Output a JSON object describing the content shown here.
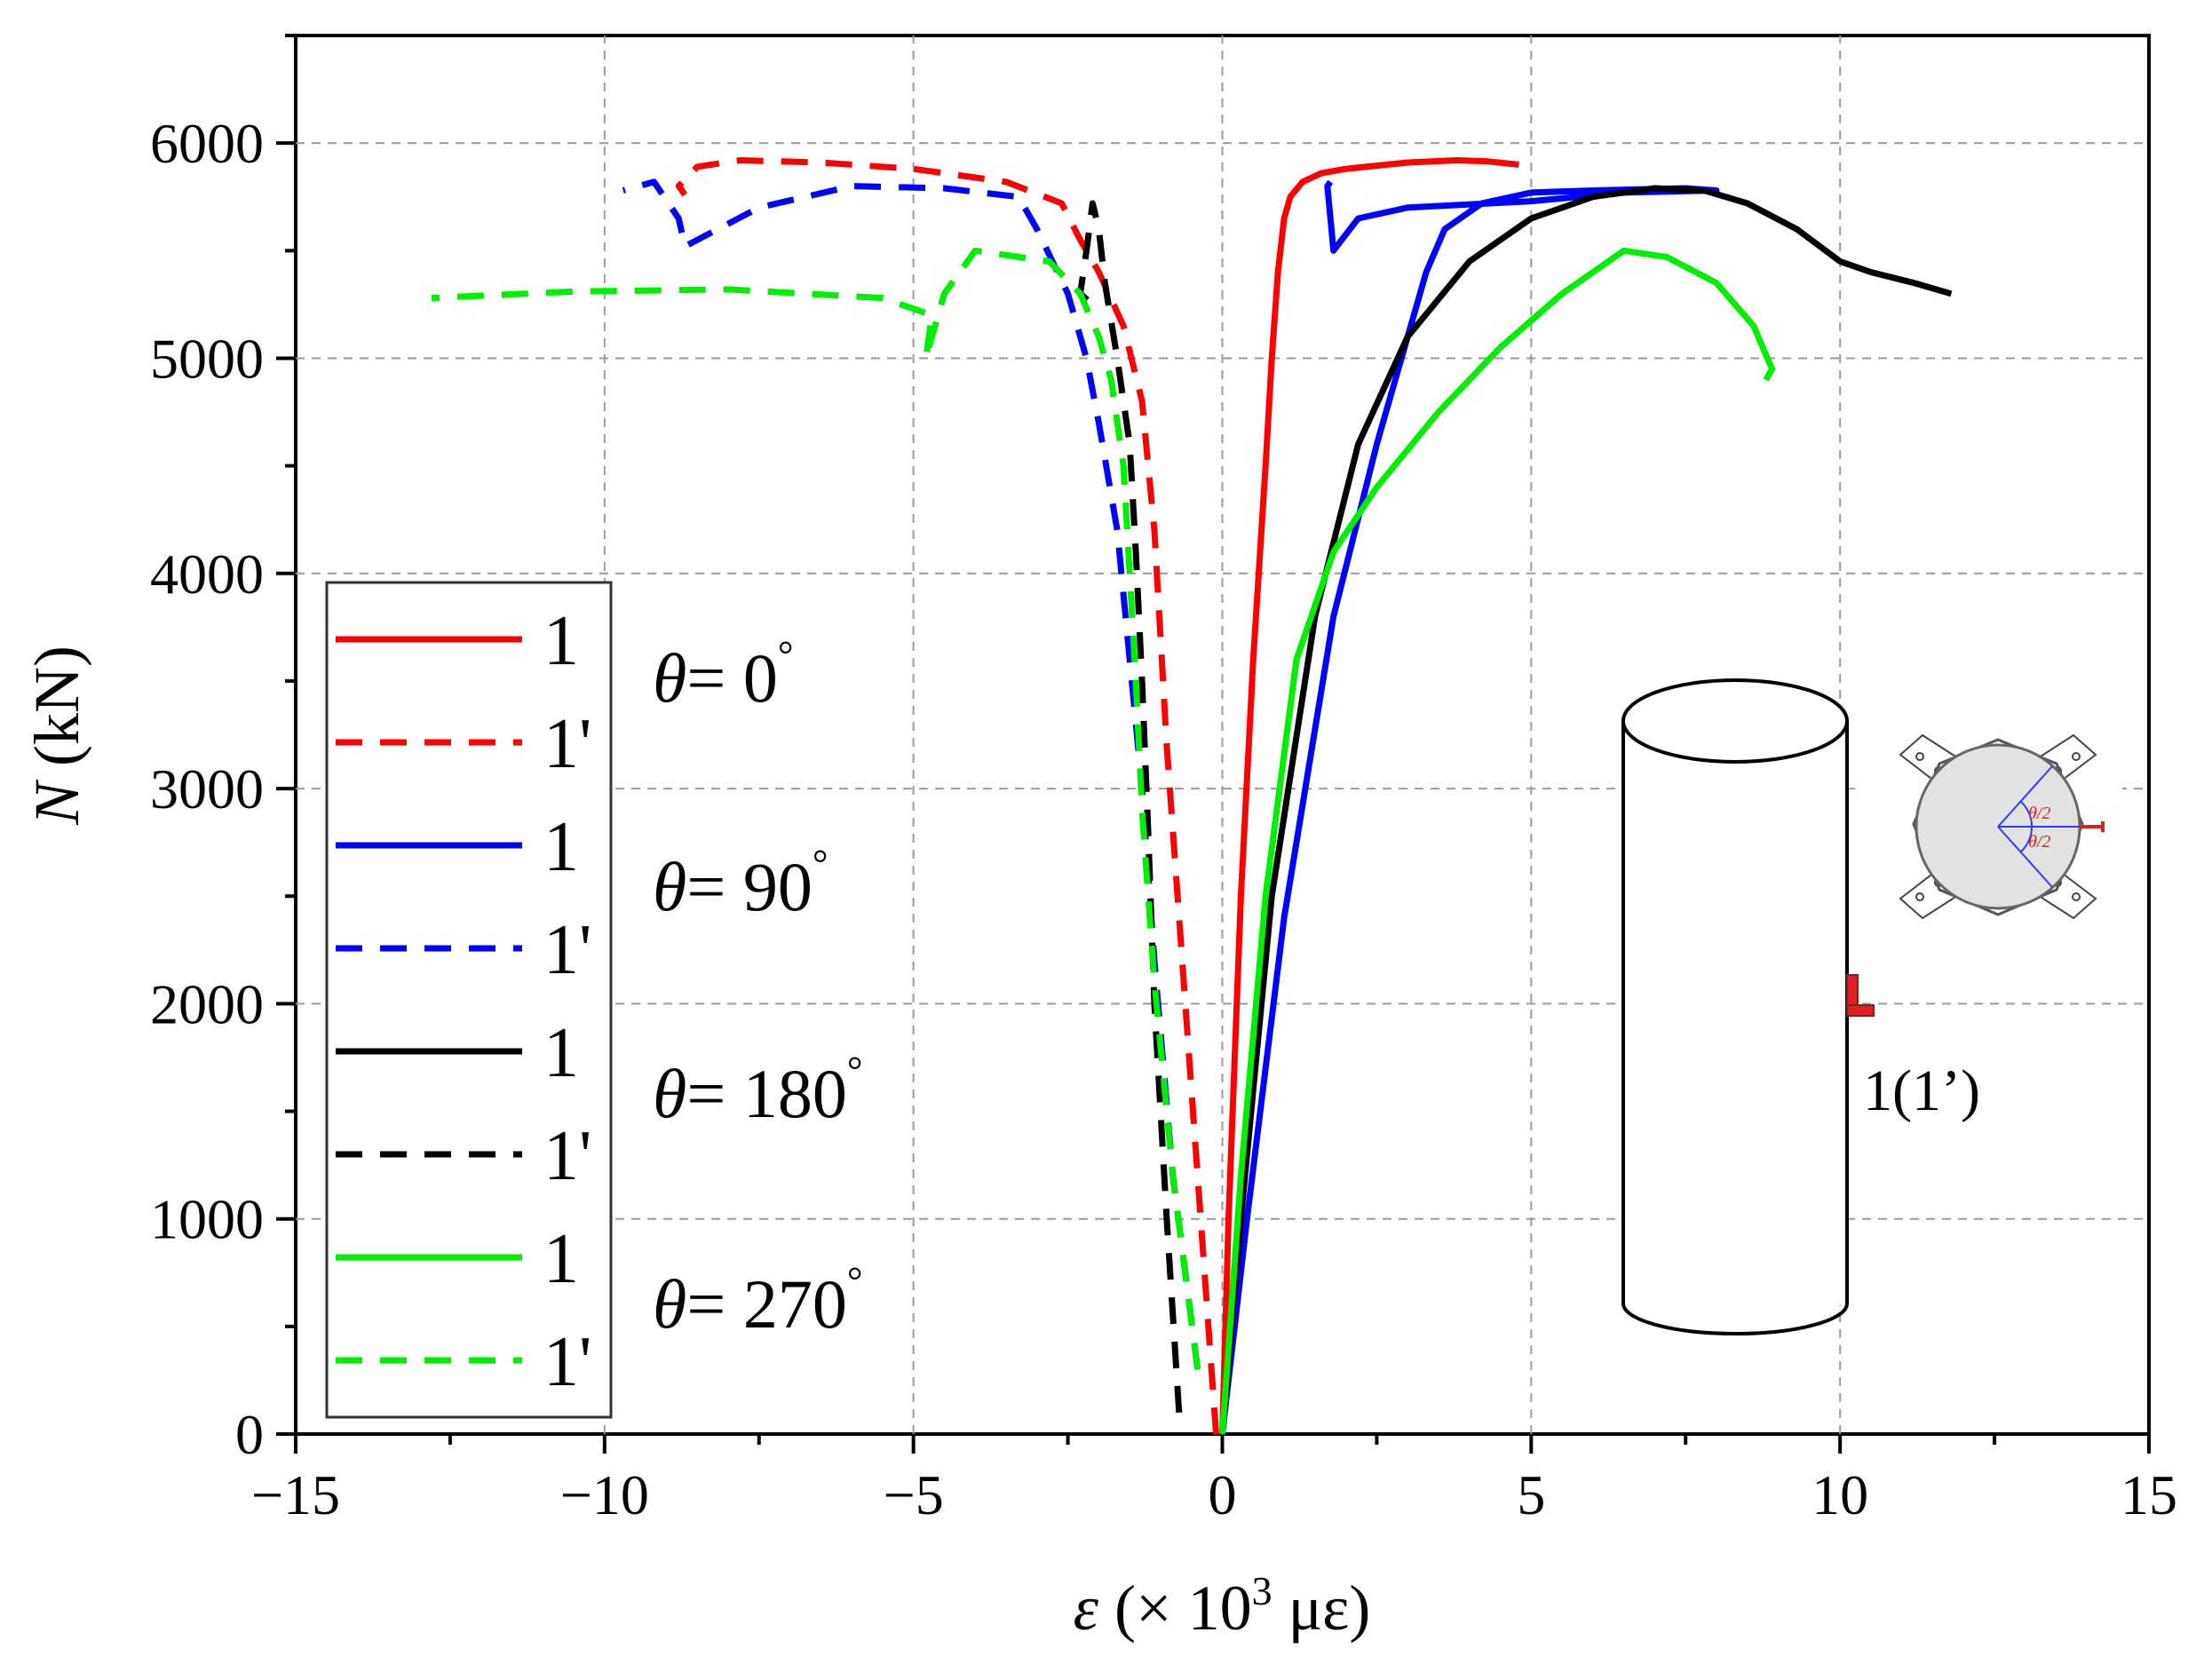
{
  "chart_data": {
    "type": "line",
    "xlabel_symbol": "ε",
    "xlabel_rest": " (× 10",
    "xlabel_exp": "3",
    "xlabel_unit": " με)",
    "ylabel_symbol": "N",
    "ylabel_rest": " (kN)",
    "xlim": [
      -15,
      15
    ],
    "ylim": [
      0,
      6500
    ],
    "x_ticks": [
      -15,
      -10,
      -5,
      0,
      5,
      10,
      15
    ],
    "x_tick_labels": [
      "−15",
      "−10",
      "−5",
      "0",
      "5",
      "10",
      "15"
    ],
    "y_ticks": [
      0,
      1000,
      2000,
      3000,
      4000,
      5000,
      6000
    ],
    "y_tick_labels": [
      "0",
      "1000",
      "2000",
      "3000",
      "4000",
      "5000",
      "6000"
    ],
    "grid": true,
    "series": [
      {
        "name": "1",
        "theta": "0",
        "color": "#ff0000",
        "style": "solid",
        "x": [
          0,
          0.1,
          0.3,
          0.5,
          0.7,
          0.8,
          0.9,
          1.0,
          1.1,
          1.3,
          1.6,
          2.0,
          3.0,
          3.8,
          4.3,
          4.8
        ],
        "y": [
          0,
          1000,
          2500,
          3600,
          4500,
          5000,
          5400,
          5650,
          5750,
          5820,
          5860,
          5880,
          5910,
          5920,
          5915,
          5900
        ]
      },
      {
        "name": "1'",
        "theta": "0",
        "color": "#ff0000",
        "style": "dashed",
        "x": [
          -0.1,
          -0.3,
          -0.6,
          -0.9,
          -1.1,
          -1.3,
          -1.6,
          -2.0,
          -2.3,
          -2.6,
          -3.5,
          -5.0,
          -6.5,
          -7.8,
          -8.5,
          -8.8,
          -8.7
        ],
        "y": [
          0,
          800,
          2000,
          3200,
          4200,
          4800,
          5150,
          5400,
          5550,
          5720,
          5820,
          5880,
          5910,
          5920,
          5890,
          5800,
          5760
        ]
      },
      {
        "name": "1",
        "theta": "90",
        "color": "#0000ff",
        "style": "solid",
        "x": [
          0,
          0.4,
          1.0,
          1.8,
          2.5,
          3.0,
          3.3,
          3.6,
          4.2,
          5.0,
          6.0,
          7.5,
          8.0,
          6.5,
          5.0,
          3.0,
          2.2,
          1.8,
          1.7,
          1.75
        ],
        "y": [
          0,
          1000,
          2400,
          3800,
          4600,
          5100,
          5400,
          5600,
          5720,
          5770,
          5780,
          5790,
          5780,
          5770,
          5730,
          5700,
          5650,
          5500,
          5800,
          5820
        ]
      },
      {
        "name": "1'",
        "theta": "90",
        "color": "#0000ff",
        "style": "dashed",
        "x": [
          -0.4,
          -0.8,
          -1.1,
          -1.3,
          -1.5,
          -1.7,
          -2.0,
          -2.2,
          -2.5,
          -3.0,
          -3.3,
          -4.5,
          -6.0,
          -7.5,
          -8.5,
          -8.7,
          -8.8,
          -9.2,
          -9.7
        ],
        "y": [
          300,
          1200,
          2200,
          3000,
          3600,
          4200,
          4700,
          5000,
          5300,
          5600,
          5750,
          5790,
          5800,
          5700,
          5550,
          5520,
          5650,
          5820,
          5780
        ]
      },
      {
        "name": "1",
        "theta": "180",
        "color": "#000000",
        "style": "solid",
        "x": [
          0,
          0.3,
          0.8,
          1.5,
          2.2,
          3.0,
          4.0,
          5.0,
          6.0,
          7.0,
          7.8,
          8.5,
          9.3,
          10.0,
          10.5,
          11.2,
          11.8
        ],
        "y": [
          0,
          1000,
          2500,
          3800,
          4600,
          5100,
          5450,
          5650,
          5750,
          5790,
          5780,
          5720,
          5600,
          5450,
          5400,
          5350,
          5300
        ]
      },
      {
        "name": "1'",
        "theta": "180",
        "color": "#000000",
        "style": "dashed",
        "x": [
          -0.7,
          -0.9,
          -1.1,
          -1.2,
          -1.3,
          -1.4,
          -1.5,
          -1.7,
          -1.9,
          -2.0,
          -2.1,
          -2.2,
          -2.3,
          -2.1
        ],
        "y": [
          100,
          1000,
          2000,
          2800,
          3500,
          4100,
          4600,
          5000,
          5350,
          5600,
          5720,
          5500,
          5300,
          5250
        ]
      },
      {
        "name": "1",
        "theta": "270",
        "color": "#00ee00",
        "style": "solid",
        "x": [
          0,
          0.3,
          0.7,
          1.2,
          1.8,
          2.5,
          3.5,
          4.5,
          5.5,
          6.5,
          7.2,
          8.0,
          8.6,
          8.9,
          8.8
        ],
        "y": [
          0,
          1200,
          2500,
          3600,
          4100,
          4400,
          4750,
          5050,
          5300,
          5500,
          5470,
          5350,
          5150,
          4950,
          4900
        ]
      },
      {
        "name": "1'",
        "theta": "270",
        "color": "#00ee00",
        "style": "dashed",
        "x": [
          -0.4,
          -0.8,
          -1.1,
          -1.3,
          -1.4,
          -1.5,
          -1.6,
          -1.8,
          -2.0,
          -2.3,
          -2.8,
          -4.0,
          -4.5,
          -4.8,
          -4.7,
          -5.5,
          -8.0,
          -10.5,
          -12.8
        ],
        "y": [
          300,
          1200,
          2100,
          2900,
          3500,
          4000,
          4500,
          4900,
          5100,
          5300,
          5450,
          5500,
          5300,
          5000,
          5200,
          5280,
          5320,
          5310,
          5280
        ]
      }
    ],
    "legend_labels": [
      "1",
      "1'",
      "1",
      "1'",
      "1",
      "1'",
      "1",
      "1'"
    ],
    "theta_labels": [
      "θ",
      "= 0",
      "= 90",
      "= 180",
      "= 270",
      "°"
    ],
    "inset_labels": {
      "sensor": "1(1’)",
      "half_angle": "θ/2"
    }
  }
}
